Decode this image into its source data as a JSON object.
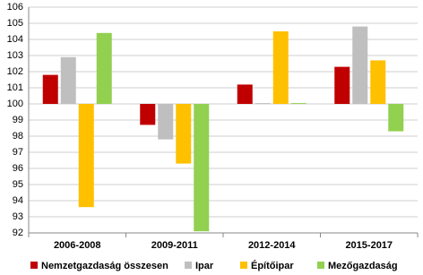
{
  "chart_data": {
    "type": "bar",
    "categories": [
      "2006-2008",
      "2009-2011",
      "2012-2014",
      "2015-2017"
    ],
    "series": [
      {
        "name": "Nemzetgazdaság összesen",
        "color": "#c00000",
        "values": [
          101.8,
          98.7,
          101.2,
          102.3
        ]
      },
      {
        "name": "Ipar",
        "color": "#bfbfbf",
        "values": [
          102.9,
          97.8,
          100.05,
          104.8
        ]
      },
      {
        "name": "Építőipar",
        "color": "#ffc000",
        "values": [
          93.6,
          96.3,
          104.5,
          102.7
        ]
      },
      {
        "name": "Mezőgazdaság",
        "color": "#92d050",
        "values": [
          104.4,
          92.1,
          100.05,
          98.3
        ]
      }
    ],
    "ylim": [
      92,
      106
    ],
    "yticks": [
      92,
      93,
      94,
      95,
      96,
      97,
      98,
      99,
      100,
      101,
      102,
      103,
      104,
      105,
      106
    ],
    "y_origin": 100,
    "grid": true,
    "legend": "bottom"
  }
}
